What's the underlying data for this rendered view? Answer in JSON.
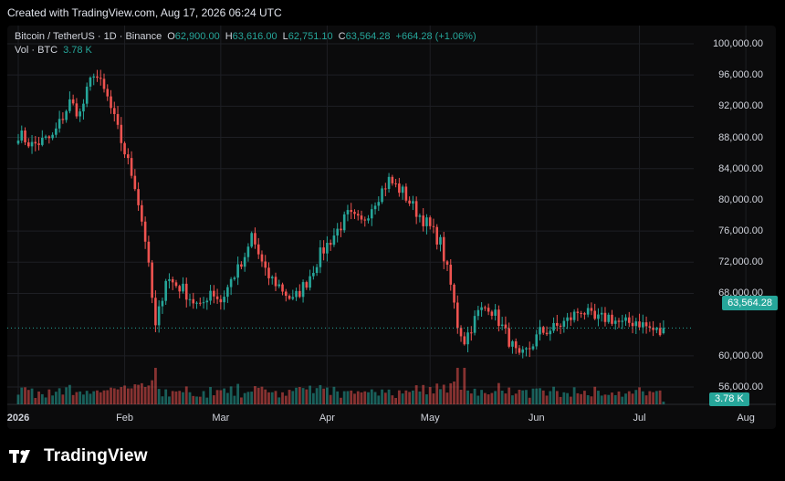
{
  "header": {
    "caption": "Created with TradingView.com, Aug 17, 2026 06:24 UTC"
  },
  "legend": {
    "symbol": "Bitcoin / TetherUS · 1D · Binance",
    "o_label": "O",
    "o_value": "62,900.00",
    "h_label": "H",
    "h_value": "63,616.00",
    "l_label": "L",
    "l_value": "62,751.10",
    "c_label": "C",
    "c_value": "63,564.28",
    "change": "+664.28 (+1.06%)",
    "vol_label": "Vol · BTC",
    "vol_value": "3.78 K"
  },
  "badges": {
    "last_price": "63,564.28",
    "last_volume": "3.78 K"
  },
  "brand": {
    "name": "TradingView",
    "logo": "tradingview-logo-icon"
  },
  "colors": {
    "up": "#26a69a",
    "down": "#ef5350",
    "background": "#0b0b0c",
    "grid": "#1e1f24"
  },
  "chart_data": {
    "type": "candlestick",
    "y_ticks": [
      "100,000.00",
      "96,000.00",
      "92,000.00",
      "88,000.00",
      "84,000.00",
      "80,000.00",
      "76,000.00",
      "72,000.00",
      "68,000.00",
      "60,000.00",
      "56,000.00"
    ],
    "y_tick_values": [
      100000,
      96000,
      92000,
      88000,
      84000,
      80000,
      76000,
      72000,
      68000,
      60000,
      56000
    ],
    "ylim": [
      53000,
      103000
    ],
    "x_ticks": [
      "2026",
      "Feb",
      "Mar",
      "Apr",
      "May",
      "Jun",
      "Jul",
      "Aug"
    ],
    "x_tick_days": [
      0,
      31,
      59,
      90,
      120,
      151,
      181,
      212
    ],
    "last_price": 63564.28,
    "grid": true,
    "close_anchors": [
      {
        "day": 0,
        "close": 88500
      },
      {
        "day": 4,
        "close": 87000
      },
      {
        "day": 10,
        "close": 88000
      },
      {
        "day": 15,
        "close": 92500
      },
      {
        "day": 18,
        "close": 91000
      },
      {
        "day": 22,
        "close": 96500
      },
      {
        "day": 26,
        "close": 93000
      },
      {
        "day": 30,
        "close": 87500
      },
      {
        "day": 34,
        "close": 82000
      },
      {
        "day": 37,
        "close": 75000
      },
      {
        "day": 40,
        "close": 63500
      },
      {
        "day": 43,
        "close": 70000
      },
      {
        "day": 48,
        "close": 68500
      },
      {
        "day": 53,
        "close": 66000
      },
      {
        "day": 56,
        "close": 68500
      },
      {
        "day": 59,
        "close": 67000
      },
      {
        "day": 63,
        "close": 70500
      },
      {
        "day": 66,
        "close": 72000
      },
      {
        "day": 68,
        "close": 75500
      },
      {
        "day": 72,
        "close": 70500
      },
      {
        "day": 76,
        "close": 69000
      },
      {
        "day": 80,
        "close": 67000
      },
      {
        "day": 84,
        "close": 69500
      },
      {
        "day": 88,
        "close": 73000
      },
      {
        "day": 92,
        "close": 75500
      },
      {
        "day": 96,
        "close": 78000
      },
      {
        "day": 100,
        "close": 77000
      },
      {
        "day": 104,
        "close": 80000
      },
      {
        "day": 108,
        "close": 82500
      },
      {
        "day": 112,
        "close": 81000
      },
      {
        "day": 116,
        "close": 78500
      },
      {
        "day": 119,
        "close": 77000
      },
      {
        "day": 123,
        "close": 74500
      },
      {
        "day": 126,
        "close": 69000
      },
      {
        "day": 128,
        "close": 64000
      },
      {
        "day": 130,
        "close": 62000
      },
      {
        "day": 134,
        "close": 65500
      },
      {
        "day": 137,
        "close": 66500
      },
      {
        "day": 140,
        "close": 64500
      },
      {
        "day": 143,
        "close": 62000
      },
      {
        "day": 146,
        "close": 59500
      },
      {
        "day": 149,
        "close": 61000
      },
      {
        "day": 152,
        "close": 63000
      },
      {
        "day": 156,
        "close": 63500
      },
      {
        "day": 160,
        "close": 64500
      },
      {
        "day": 164,
        "close": 66000
      },
      {
        "day": 168,
        "close": 64500
      },
      {
        "day": 172,
        "close": 65000
      },
      {
        "day": 176,
        "close": 64000
      },
      {
        "day": 180,
        "close": 64500
      },
      {
        "day": 184,
        "close": 63500
      },
      {
        "day": 187,
        "close": 62900
      },
      {
        "day": 188,
        "close": 63564
      }
    ]
  }
}
